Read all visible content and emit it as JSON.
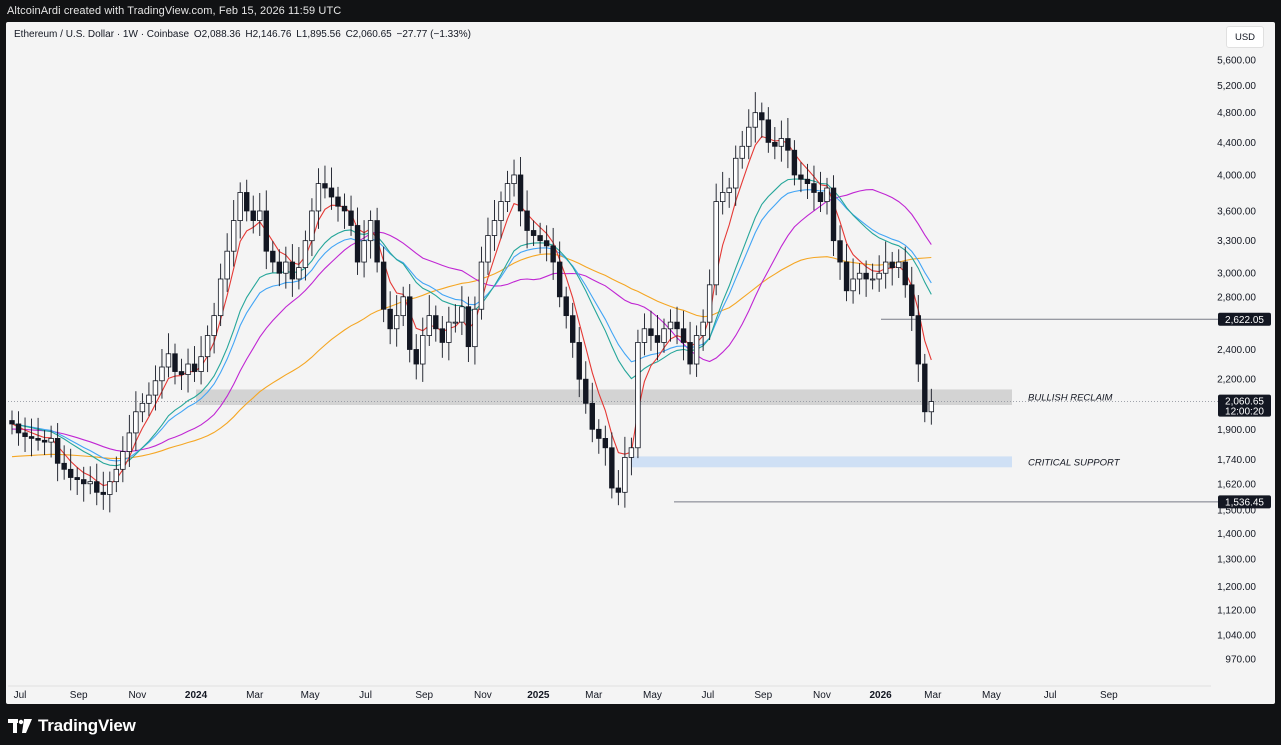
{
  "caption": "AltcoinArdi created with TradingView.com, Feb 15, 2026 11:59 UTC",
  "legend": {
    "symbol": "Ethereum / U.S. Dollar · 1W · Coinbase",
    "open": "O2,088.36",
    "high": "H2,146.76",
    "low": "L1,895.56",
    "close": "C2,060.65",
    "change": "−27.77 (−1.33%)"
  },
  "currency": "USD",
  "brand": "TradingView",
  "colors": {
    "panel_bg": "#f4f4f4",
    "candle_body": "#131722",
    "ema_red": "#e53935",
    "ema_green": "#26a69a",
    "ema_blue": "#42a5f5",
    "ma_purple": "#c026d3",
    "ma_orange": "#f5a623",
    "reclaim_zone": "#d3d3d3",
    "support_zone": "#cfe0f5"
  },
  "chart_data": {
    "type": "candlestick",
    "scale": "log",
    "ylim": [
      920,
      5900
    ],
    "y_ticks": [
      "5,600.00",
      "5,200.00",
      "4,800.00",
      "4,400.00",
      "4,000.00",
      "3,600.00",
      "3,300.00",
      "3,000.00",
      "2,800.00",
      "2,400.00",
      "2,200.00",
      "1,900.00",
      "1,740.00",
      "1,620.00",
      "1,500.00",
      "1,400.00",
      "1,300.00",
      "1,200.00",
      "1,120.00",
      "1,040.00",
      "970.00"
    ],
    "y_tick_values": [
      5600,
      5200,
      4800,
      4400,
      4000,
      3600,
      3300,
      3000,
      2800,
      2400,
      2200,
      1900,
      1740,
      1620,
      1500,
      1400,
      1300,
      1200,
      1120,
      1040,
      970
    ],
    "x_ticks": [
      {
        "label": "Jul",
        "bold": false,
        "week": 0
      },
      {
        "label": "Sep",
        "bold": false,
        "week": 9
      },
      {
        "label": "Nov",
        "bold": false,
        "week": 18
      },
      {
        "label": "2024",
        "bold": true,
        "week": 27
      },
      {
        "label": "Mar",
        "bold": false,
        "week": 36
      },
      {
        "label": "May",
        "bold": false,
        "week": 44.5
      },
      {
        "label": "Jul",
        "bold": false,
        "week": 53
      },
      {
        "label": "Sep",
        "bold": false,
        "week": 62
      },
      {
        "label": "Nov",
        "bold": false,
        "week": 71
      },
      {
        "label": "2025",
        "bold": true,
        "week": 79.5
      },
      {
        "label": "Mar",
        "bold": false,
        "week": 88
      },
      {
        "label": "May",
        "bold": false,
        "week": 97
      },
      {
        "label": "Jul",
        "bold": false,
        "week": 105.5
      },
      {
        "label": "Sep",
        "bold": false,
        "week": 114
      },
      {
        "label": "Nov",
        "bold": false,
        "week": 123
      },
      {
        "label": "2026",
        "bold": true,
        "week": 132
      },
      {
        "label": "Mar",
        "bold": false,
        "week": 140
      },
      {
        "label": "May",
        "bold": false,
        "week": 149
      },
      {
        "label": "Jul",
        "bold": false,
        "week": 158
      },
      {
        "label": "Sep",
        "bold": false,
        "week": 167
      }
    ],
    "closes": [
      1930,
      1880,
      1860,
      1850,
      1840,
      1830,
      1850,
      1720,
      1690,
      1650,
      1640,
      1620,
      1630,
      1580,
      1570,
      1630,
      1690,
      1780,
      1880,
      2000,
      2050,
      2100,
      2190,
      2280,
      2370,
      2250,
      2230,
      2300,
      2250,
      2350,
      2500,
      2650,
      2950,
      3200,
      3500,
      3800,
      3600,
      3500,
      3600,
      3200,
      3100,
      3000,
      3100,
      2950,
      3050,
      3300,
      3600,
      3900,
      3850,
      3750,
      3650,
      3600,
      3450,
      3100,
      3300,
      3500,
      3100,
      2700,
      2550,
      2650,
      2800,
      2400,
      2300,
      2500,
      2650,
      2550,
      2450,
      2600,
      2600,
      2720,
      2420,
      2700,
      3100,
      3350,
      3500,
      3700,
      3900,
      4000,
      3600,
      3400,
      3350,
      3300,
      3250,
      3100,
      2800,
      2650,
      2450,
      2200,
      2050,
      1900,
      1850,
      1800,
      1600,
      1580,
      1750,
      1800,
      2450,
      2550,
      2500,
      2450,
      2550,
      2600,
      2550,
      2450,
      2300,
      2500,
      2600,
      2900,
      3700,
      3800,
      3850,
      4200,
      4350,
      4600,
      4800,
      4700,
      4400,
      4350,
      4450,
      4300,
      4000,
      3950,
      3900,
      3800,
      3700,
      3850,
      3300,
      3100,
      2850,
      2950,
      3000,
      2950,
      2950,
      3000,
      3100,
      3050,
      3100,
      2900,
      2650,
      2300,
      2000,
      2060.65
    ],
    "annotations": [
      {
        "label": "BULLISH RECLAIM",
        "low": 2040,
        "high": 2135
      },
      {
        "label": "CRITICAL SUPPORT",
        "low": 1700,
        "high": 1755
      }
    ],
    "price_labels": [
      {
        "value": 2622.05,
        "text": "2,622.05"
      },
      {
        "value": 2060.65,
        "text": "2,060.65",
        "sub": "12:00:20"
      },
      {
        "value": 1536.45,
        "text": "1,536.45"
      }
    ]
  }
}
